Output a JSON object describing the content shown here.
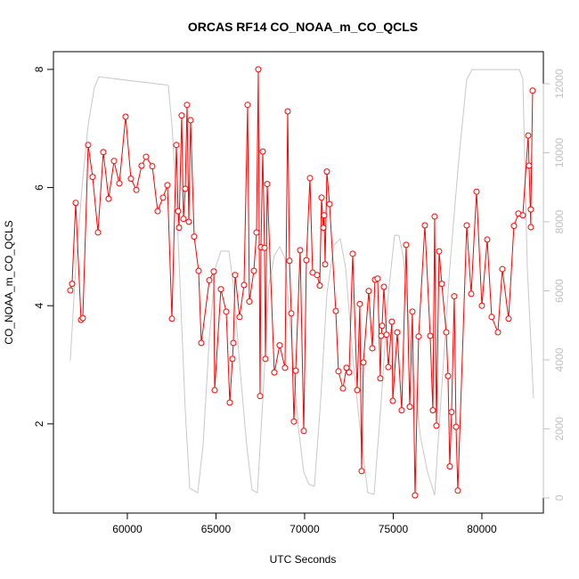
{
  "chart_data": {
    "type": "line",
    "title": "ORCAS RF14 CO_NOAA_m_CO_QCLS",
    "xlabel": "UTC Seconds",
    "ylabel": "CO_NOAA_m_CO_QCLS",
    "xlim": [
      55830,
      83470
    ],
    "ylim": [
      0.49,
      8.3
    ],
    "y2lim": [
      -440,
      12930
    ],
    "x_ticks": [
      60000,
      65000,
      70000,
      75000,
      80000
    ],
    "y_ticks": [
      2,
      4,
      6,
      8
    ],
    "y2_ticks": [
      0,
      2000,
      4000,
      6000,
      8000,
      10000,
      12000
    ],
    "grid": false,
    "colors": {
      "primary": "#ff0000",
      "secondary": "#c8c8c8",
      "secondary_axis": "#c0c0c0"
    },
    "series": [
      {
        "axis": "left",
        "style": "line+points",
        "x": [
          56780,
          56880,
          57085,
          57387,
          57487,
          57789,
          58040,
          58342,
          58643,
          58945,
          59246,
          59548,
          59900,
          60201,
          60503,
          60804,
          61055,
          61407,
          61709,
          62010,
          62261,
          62513,
          62764,
          62864,
          62915,
          63065,
          63166,
          63266,
          63367,
          63467,
          63568,
          63769,
          64020,
          64171,
          64623,
          64874,
          64925,
          65276,
          65578,
          65779,
          65930,
          65980,
          66080,
          66332,
          66583,
          66784,
          66884,
          67136,
          67286,
          67387,
          67487,
          67538,
          67638,
          67739,
          67789,
          67889,
          68291,
          68593,
          68894,
          69045,
          69146,
          69246,
          69397,
          69497,
          69748,
          69950,
          70100,
          70301,
          70452,
          70703,
          70854,
          70955,
          71055,
          71105,
          71156,
          71256,
          71407,
          71759,
          71910,
          72161,
          72362,
          72512,
          72713,
          72965,
          73115,
          73216,
          73316,
          73618,
          73819,
          73970,
          74120,
          74271,
          74321,
          74372,
          74472,
          74623,
          74723,
          74924,
          74975,
          75226,
          75477,
          75729,
          75930,
          76080,
          76231,
          76432,
          76784,
          77085,
          77236,
          77337,
          77437,
          77588,
          77739,
          77990,
          78090,
          78191,
          78291,
          78442,
          78543,
          78643,
          79146,
          79397,
          79698,
          80000,
          80301,
          80552,
          80904,
          81155,
          81507,
          81809,
          82060,
          82311,
          82613,
          82663,
          82764,
          82764,
          82864
        ],
        "y": [
          4.26,
          4.37,
          5.74,
          3.76,
          3.79,
          6.72,
          6.18,
          5.24,
          6.6,
          5.81,
          6.45,
          6.07,
          7.2,
          6.15,
          5.96,
          6.37,
          6.52,
          6.36,
          5.6,
          5.83,
          6.04,
          3.78,
          6.72,
          5.6,
          5.32,
          7.22,
          5.47,
          5.98,
          7.4,
          5.42,
          7.14,
          5.17,
          4.59,
          3.37,
          4.43,
          4.58,
          2.57,
          4.28,
          3.9,
          2.36,
          3.1,
          3.37,
          4.52,
          3.81,
          4.35,
          7.4,
          4.07,
          4.59,
          5.24,
          8.0,
          2.47,
          4.99,
          6.61,
          4.98,
          3.1,
          6.06,
          2.87,
          3.33,
          2.95,
          7.29,
          4.76,
          3.87,
          2.04,
          2.9,
          4.94,
          1.88,
          4.77,
          6.16,
          4.56,
          4.52,
          4.34,
          5.83,
          5.32,
          5.53,
          4.7,
          6.27,
          5.72,
          3.91,
          2.89,
          2.6,
          2.95,
          2.87,
          4.88,
          2.57,
          4.03,
          1.2,
          3.04,
          4.25,
          3.28,
          4.44,
          4.46,
          2.77,
          3.49,
          3.66,
          4.32,
          3.51,
          2.96,
          3.73,
          2.39,
          3.55,
          2.23,
          5.03,
          2.29,
          3.9,
          0.79,
          3.48,
          5.36,
          3.49,
          2.23,
          5.51,
          1.97,
          4.92,
          4.37,
          3.55,
          2.81,
          1.28,
          2.2,
          4.16,
          1.95,
          0.87,
          5.36,
          4.2,
          5.93,
          4.0,
          5.12,
          3.81,
          3.55,
          4.62,
          3.78,
          5.35,
          5.56,
          5.53,
          6.88,
          6.37,
          5.33,
          5.63,
          7.64
        ]
      },
      {
        "axis": "right",
        "style": "line",
        "x": [
          56780,
          57085,
          57487,
          57789,
          58141,
          58392,
          62161,
          62311,
          62513,
          62764,
          63015,
          63266,
          63518,
          63970,
          64271,
          64623,
          64975,
          65276,
          65729,
          65980,
          66382,
          66734,
          67035,
          67337,
          67638,
          67990,
          68291,
          68593,
          68894,
          69246,
          69648,
          69950,
          70251,
          70553,
          70904,
          71256,
          71658,
          72010,
          72311,
          72713,
          73166,
          73568,
          73920,
          74321,
          74724,
          75075,
          75326,
          75578,
          76030,
          76533,
          76935,
          77337,
          77688,
          78191,
          78693,
          79146,
          79447,
          82110,
          82311,
          82563,
          82915
        ],
        "y": [
          3970,
          6680,
          9260,
          10810,
          11890,
          12200,
          11970,
          11950,
          10810,
          8750,
          5650,
          2550,
          280,
          150,
          1520,
          4620,
          6680,
          7150,
          7150,
          6170,
          3590,
          1520,
          230,
          150,
          2810,
          6170,
          7020,
          7280,
          6940,
          4620,
          2040,
          750,
          390,
          340,
          2810,
          5910,
          7330,
          7510,
          6680,
          4100,
          1780,
          150,
          100,
          2810,
          5910,
          7610,
          7610,
          6940,
          4100,
          1780,
          750,
          80,
          2810,
          6680,
          9780,
          12130,
          12410,
          12410,
          12150,
          6680,
          2890
        ]
      }
    ]
  }
}
